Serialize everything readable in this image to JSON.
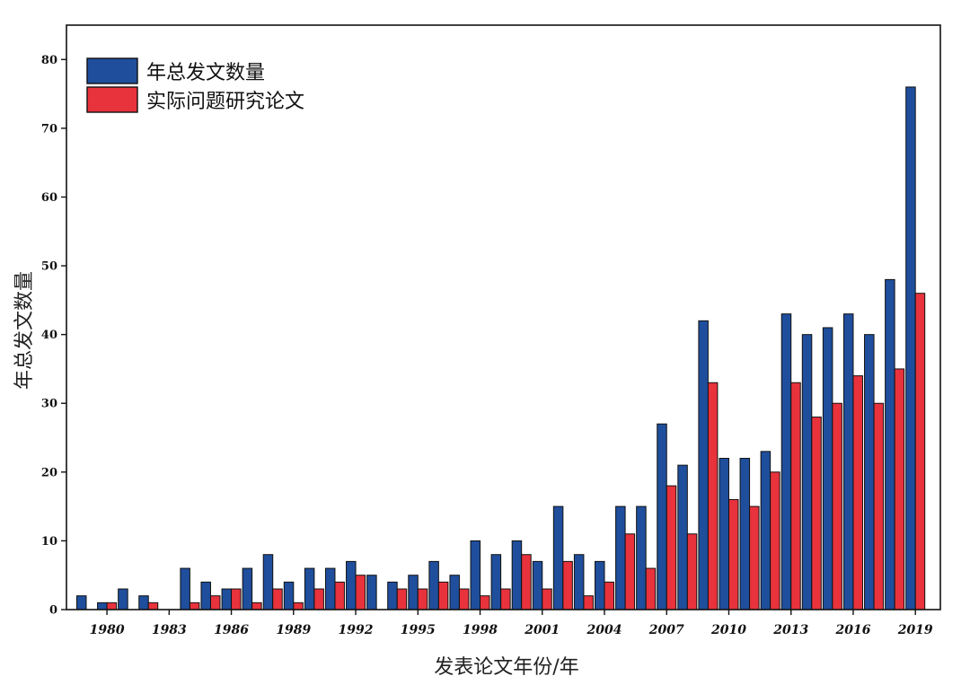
{
  "chart_data": {
    "type": "bar",
    "title": "",
    "xlabel": "发表论文年份/年",
    "ylabel": "年总发文数量",
    "ylim": [
      0,
      85
    ],
    "yticks": [
      0,
      10,
      20,
      30,
      40,
      50,
      60,
      70,
      80
    ],
    "xtick_labels": [
      "1980",
      "1983",
      "1986",
      "1989",
      "1992",
      "1995",
      "1998",
      "2001",
      "2004",
      "2007",
      "2010",
      "2013",
      "2016",
      "2019"
    ],
    "categories": [
      1979,
      1980,
      1981,
      1982,
      1983,
      1984,
      1985,
      1986,
      1987,
      1988,
      1989,
      1990,
      1991,
      1992,
      1993,
      1994,
      1995,
      1996,
      1997,
      1998,
      1999,
      2000,
      2001,
      2002,
      2003,
      2004,
      2005,
      2006,
      2007,
      2008,
      2009,
      2010,
      2011,
      2012,
      2013,
      2014,
      2015,
      2016,
      2017,
      2018,
      2019
    ],
    "series": [
      {
        "name": "年总发文数量",
        "color": "#1f4e9c",
        "values": [
          2,
          1,
          3,
          2,
          0,
          6,
          4,
          3,
          6,
          8,
          4,
          6,
          6,
          7,
          5,
          4,
          5,
          7,
          5,
          10,
          8,
          10,
          7,
          15,
          8,
          7,
          15,
          15,
          27,
          21,
          42,
          22,
          22,
          23,
          43,
          40,
          41,
          43,
          40,
          48,
          76
        ]
      },
      {
        "name": "实际问题研究论文",
        "color": "#e8323c",
        "values": [
          0,
          1,
          0,
          1,
          0,
          1,
          2,
          3,
          1,
          3,
          1,
          3,
          4,
          5,
          0,
          3,
          3,
          4,
          3,
          2,
          3,
          8,
          3,
          7,
          2,
          4,
          11,
          6,
          18,
          11,
          33,
          16,
          15,
          20,
          33,
          28,
          30,
          34,
          30,
          35,
          46
        ]
      }
    ],
    "legend_position": "top-left",
    "grid": false
  }
}
